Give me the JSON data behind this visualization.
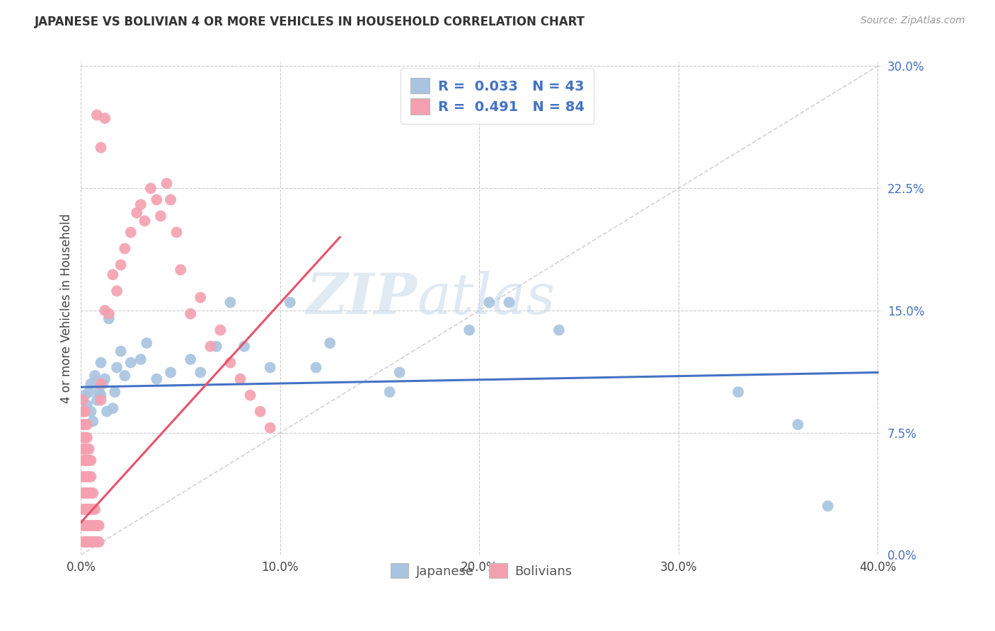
{
  "title": "JAPANESE VS BOLIVIAN 4 OR MORE VEHICLES IN HOUSEHOLD CORRELATION CHART",
  "source": "Source: ZipAtlas.com",
  "xlabel_tick_vals": [
    0.0,
    0.1,
    0.2,
    0.3,
    0.4
  ],
  "ylabel_tick_vals": [
    0.0,
    0.075,
    0.15,
    0.225,
    0.3
  ],
  "ylabel": "4 or more Vehicles in Household",
  "xmin": 0.0,
  "xmax": 0.4,
  "ymin": 0.0,
  "ymax": 0.3,
  "japanese_color": "#a8c4e0",
  "bolivian_color": "#f4a0b0",
  "japanese_line_color": "#4472c4",
  "bolivian_line_color": "#e8526a",
  "diagonal_color": "#c8c8c8",
  "legend_text_color": "#4472c4",
  "watermark_zip": "ZIP",
  "watermark_atlas": "atlas",
  "japanese_points": [
    [
      0.002,
      0.098
    ],
    [
      0.003,
      0.092
    ],
    [
      0.004,
      0.1
    ],
    [
      0.005,
      0.105
    ],
    [
      0.005,
      0.088
    ],
    [
      0.006,
      0.082
    ],
    [
      0.007,
      0.11
    ],
    [
      0.008,
      0.095
    ],
    [
      0.009,
      0.1
    ],
    [
      0.01,
      0.098
    ],
    [
      0.01,
      0.118
    ],
    [
      0.011,
      0.105
    ],
    [
      0.012,
      0.108
    ],
    [
      0.013,
      0.088
    ],
    [
      0.014,
      0.145
    ],
    [
      0.016,
      0.09
    ],
    [
      0.017,
      0.1
    ],
    [
      0.018,
      0.115
    ],
    [
      0.02,
      0.125
    ],
    [
      0.022,
      0.11
    ],
    [
      0.025,
      0.118
    ],
    [
      0.03,
      0.12
    ],
    [
      0.033,
      0.13
    ],
    [
      0.038,
      0.108
    ],
    [
      0.045,
      0.112
    ],
    [
      0.055,
      0.12
    ],
    [
      0.06,
      0.112
    ],
    [
      0.068,
      0.128
    ],
    [
      0.075,
      0.155
    ],
    [
      0.082,
      0.128
    ],
    [
      0.095,
      0.115
    ],
    [
      0.105,
      0.155
    ],
    [
      0.118,
      0.115
    ],
    [
      0.125,
      0.13
    ],
    [
      0.155,
      0.1
    ],
    [
      0.16,
      0.112
    ],
    [
      0.195,
      0.138
    ],
    [
      0.205,
      0.155
    ],
    [
      0.215,
      0.155
    ],
    [
      0.24,
      0.138
    ],
    [
      0.33,
      0.1
    ],
    [
      0.36,
      0.08
    ],
    [
      0.375,
      0.03
    ]
  ],
  "bolivian_points": [
    [
      0.001,
      0.008
    ],
    [
      0.001,
      0.018
    ],
    [
      0.001,
      0.028
    ],
    [
      0.001,
      0.038
    ],
    [
      0.001,
      0.048
    ],
    [
      0.001,
      0.058
    ],
    [
      0.001,
      0.065
    ],
    [
      0.001,
      0.072
    ],
    [
      0.001,
      0.08
    ],
    [
      0.001,
      0.088
    ],
    [
      0.001,
      0.095
    ],
    [
      0.002,
      0.008
    ],
    [
      0.002,
      0.018
    ],
    [
      0.002,
      0.028
    ],
    [
      0.002,
      0.038
    ],
    [
      0.002,
      0.048
    ],
    [
      0.002,
      0.058
    ],
    [
      0.002,
      0.065
    ],
    [
      0.002,
      0.072
    ],
    [
      0.002,
      0.08
    ],
    [
      0.002,
      0.088
    ],
    [
      0.003,
      0.008
    ],
    [
      0.003,
      0.018
    ],
    [
      0.003,
      0.028
    ],
    [
      0.003,
      0.038
    ],
    [
      0.003,
      0.048
    ],
    [
      0.003,
      0.058
    ],
    [
      0.003,
      0.065
    ],
    [
      0.003,
      0.072
    ],
    [
      0.003,
      0.08
    ],
    [
      0.004,
      0.008
    ],
    [
      0.004,
      0.018
    ],
    [
      0.004,
      0.028
    ],
    [
      0.004,
      0.038
    ],
    [
      0.004,
      0.048
    ],
    [
      0.004,
      0.058
    ],
    [
      0.004,
      0.065
    ],
    [
      0.005,
      0.008
    ],
    [
      0.005,
      0.018
    ],
    [
      0.005,
      0.028
    ],
    [
      0.005,
      0.038
    ],
    [
      0.005,
      0.048
    ],
    [
      0.005,
      0.058
    ],
    [
      0.006,
      0.008
    ],
    [
      0.006,
      0.018
    ],
    [
      0.006,
      0.028
    ],
    [
      0.006,
      0.038
    ],
    [
      0.007,
      0.008
    ],
    [
      0.007,
      0.018
    ],
    [
      0.007,
      0.028
    ],
    [
      0.008,
      0.008
    ],
    [
      0.008,
      0.018
    ],
    [
      0.008,
      0.27
    ],
    [
      0.009,
      0.008
    ],
    [
      0.009,
      0.018
    ],
    [
      0.01,
      0.095
    ],
    [
      0.01,
      0.105
    ],
    [
      0.012,
      0.15
    ],
    [
      0.014,
      0.148
    ],
    [
      0.016,
      0.172
    ],
    [
      0.018,
      0.162
    ],
    [
      0.02,
      0.178
    ],
    [
      0.022,
      0.188
    ],
    [
      0.025,
      0.198
    ],
    [
      0.028,
      0.21
    ],
    [
      0.03,
      0.215
    ],
    [
      0.032,
      0.205
    ],
    [
      0.035,
      0.225
    ],
    [
      0.038,
      0.218
    ],
    [
      0.04,
      0.208
    ],
    [
      0.043,
      0.228
    ],
    [
      0.045,
      0.218
    ],
    [
      0.048,
      0.198
    ],
    [
      0.05,
      0.175
    ],
    [
      0.055,
      0.148
    ],
    [
      0.06,
      0.158
    ],
    [
      0.065,
      0.128
    ],
    [
      0.07,
      0.138
    ],
    [
      0.075,
      0.118
    ],
    [
      0.08,
      0.108
    ],
    [
      0.085,
      0.098
    ],
    [
      0.09,
      0.088
    ],
    [
      0.095,
      0.078
    ],
    [
      0.012,
      0.268
    ],
    [
      0.01,
      0.25
    ]
  ]
}
